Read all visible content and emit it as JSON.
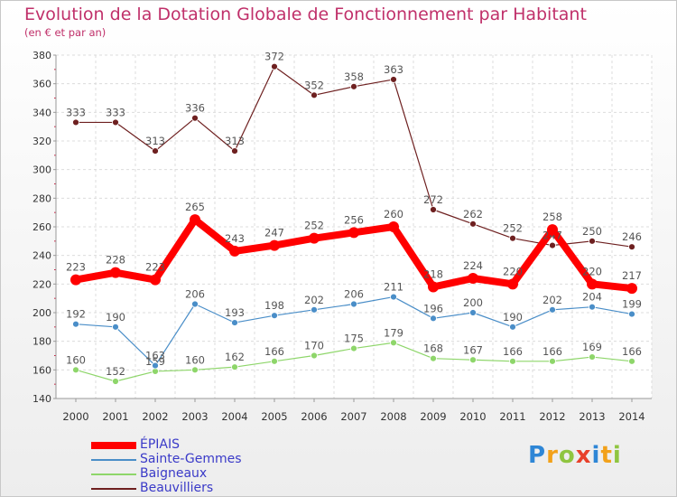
{
  "chart_data": {
    "type": "line",
    "title": "Evolution de la Dotation Globale de Fonctionnement par Habitant",
    "subtitle": "(en € et par an)",
    "x": [
      "2000",
      "2001",
      "2002",
      "2003",
      "2004",
      "2005",
      "2006",
      "2007",
      "2008",
      "2009",
      "2010",
      "2011",
      "2012",
      "2013",
      "2014"
    ],
    "ylim": [
      140,
      380
    ],
    "yticks": [
      140,
      160,
      180,
      200,
      220,
      240,
      260,
      280,
      300,
      320,
      340,
      360,
      380
    ],
    "grid": true,
    "legend_position": "bottom-left",
    "series": [
      {
        "name": "ÉPIAIS",
        "color": "#ff0000",
        "values": [
          223,
          228,
          223,
          265,
          243,
          247,
          252,
          256,
          260,
          218,
          224,
          220,
          258,
          220,
          217
        ]
      },
      {
        "name": "Sainte-Gemmes",
        "color": "#4a8ec8",
        "values": [
          192,
          190,
          163,
          206,
          193,
          198,
          202,
          206,
          211,
          196,
          200,
          190,
          202,
          204,
          199
        ]
      },
      {
        "name": "Baigneaux",
        "color": "#8ed66a",
        "values": [
          160,
          152,
          159,
          160,
          162,
          166,
          170,
          175,
          179,
          168,
          167,
          166,
          166,
          169,
          166
        ]
      },
      {
        "name": "Beauvilliers",
        "color": "#6e2020",
        "values": [
          333,
          333,
          313,
          336,
          313,
          372,
          352,
          358,
          363,
          272,
          262,
          252,
          247,
          250,
          246
        ]
      }
    ]
  },
  "brand": {
    "letters": [
      "P",
      "r",
      "o",
      "x",
      "i",
      "t",
      "i"
    ],
    "colors": [
      "#2e86d6",
      "#f2a11a",
      "#8fc540",
      "#e8402a",
      "#2e86d6",
      "#f2a11a",
      "#8fc540"
    ]
  }
}
